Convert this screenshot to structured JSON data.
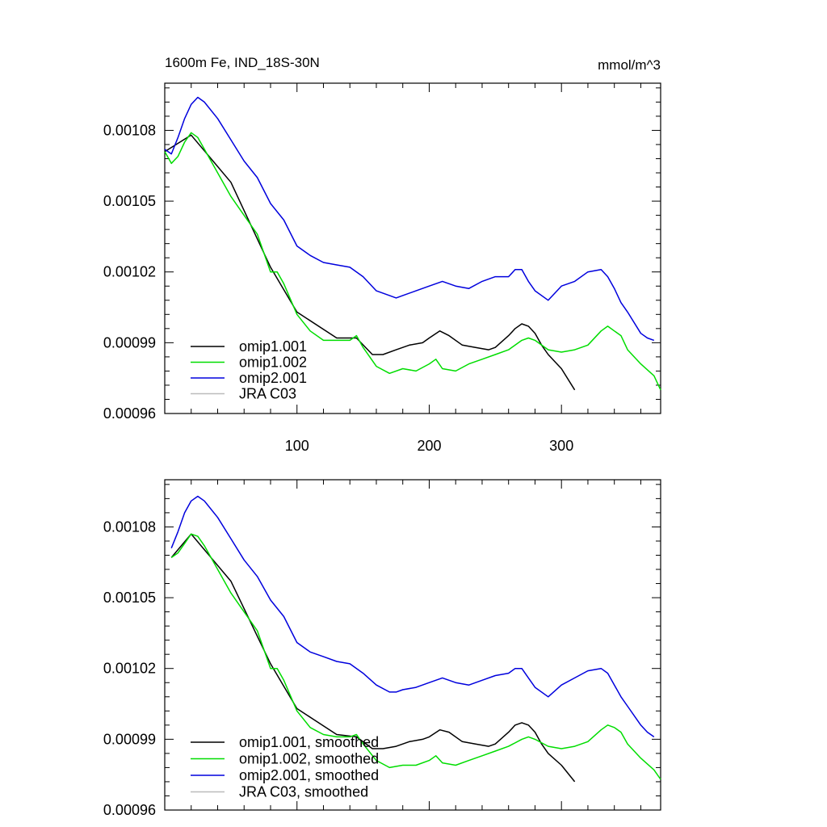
{
  "chart_data": [
    {
      "type": "line",
      "title": "1600m Fe, IND_18S-30N",
      "units": "mmol/m^3",
      "xlim": [
        0,
        375
      ],
      "ylim": [
        0.00096,
        0.0011
      ],
      "yticks": [
        "0.00096",
        "0.00099",
        "0.00102",
        "0.00105",
        "0.00108"
      ],
      "xticks": [
        "100",
        "200",
        "300"
      ],
      "legend": [
        "omip1.001",
        "omip1.002",
        "omip2.001",
        "JRA C03"
      ],
      "series": [
        {
          "name": "omip1.001",
          "color": "#000000",
          "x": [
            0,
            20,
            50,
            80,
            100,
            130,
            145,
            157,
            165,
            175,
            185,
            195,
            200,
            208,
            215,
            225,
            235,
            245,
            250,
            260,
            265,
            270,
            275,
            280,
            285,
            290,
            300,
            310
          ],
          "y": [
            0.001071,
            0.001078,
            0.001058,
            0.001022,
            0.001003,
            0.000992,
            0.000992,
            0.000985,
            0.000985,
            0.000987,
            0.000989,
            0.00099,
            0.000992,
            0.000995,
            0.000993,
            0.000989,
            0.000988,
            0.000987,
            0.000988,
            0.000993,
            0.000996,
            0.000998,
            0.000997,
            0.000994,
            0.000989,
            0.000985,
            0.000979,
            0.00097
          ]
        },
        {
          "name": "omip1.002",
          "color": "#00dd00",
          "x": [
            0,
            5,
            10,
            15,
            20,
            25,
            30,
            40,
            50,
            60,
            70,
            80,
            85,
            90,
            100,
            110,
            120,
            130,
            140,
            145,
            150,
            160,
            170,
            180,
            190,
            200,
            205,
            210,
            220,
            230,
            240,
            250,
            260,
            270,
            275,
            280,
            290,
            300,
            310,
            320,
            330,
            335,
            340,
            345,
            350,
            360,
            370,
            375
          ],
          "y": [
            0.001071,
            0.001066,
            0.001069,
            0.001075,
            0.001079,
            0.001077,
            0.001072,
            0.001062,
            0.001052,
            0.001044,
            0.001036,
            0.00102,
            0.00102,
            0.001015,
            0.001002,
            0.000995,
            0.000991,
            0.000991,
            0.000991,
            0.000993,
            0.000988,
            0.00098,
            0.000977,
            0.000979,
            0.000978,
            0.000981,
            0.000983,
            0.000979,
            0.000978,
            0.000981,
            0.000983,
            0.000985,
            0.000987,
            0.000991,
            0.000992,
            0.000991,
            0.000987,
            0.000986,
            0.000987,
            0.000989,
            0.000995,
            0.000997,
            0.000995,
            0.000993,
            0.000987,
            0.000981,
            0.000976,
            0.00097
          ]
        },
        {
          "name": "omip2.001",
          "color": "#0000dd",
          "x": [
            0,
            5,
            10,
            15,
            20,
            25,
            30,
            40,
            50,
            60,
            70,
            80,
            90,
            100,
            110,
            120,
            130,
            140,
            150,
            160,
            170,
            175,
            180,
            190,
            200,
            210,
            220,
            230,
            240,
            250,
            260,
            265,
            270,
            275,
            280,
            290,
            300,
            310,
            320,
            330,
            335,
            340,
            345,
            350,
            360,
            365,
            370
          ],
          "y": [
            0.001072,
            0.00107,
            0.001077,
            0.001085,
            0.001091,
            0.001094,
            0.001092,
            0.001085,
            0.001076,
            0.001067,
            0.00106,
            0.001049,
            0.001042,
            0.001031,
            0.001027,
            0.001024,
            0.001023,
            0.001022,
            0.001018,
            0.001012,
            0.00101,
            0.001009,
            0.00101,
            0.001012,
            0.001014,
            0.001016,
            0.001014,
            0.001013,
            0.001016,
            0.001018,
            0.001018,
            0.001021,
            0.001021,
            0.001016,
            0.001012,
            0.001008,
            0.001014,
            0.001016,
            0.00102,
            0.001021,
            0.001018,
            0.001013,
            0.001007,
            0.001003,
            0.000994,
            0.000992,
            0.000991
          ]
        }
      ]
    },
    {
      "type": "line",
      "title": "",
      "units": "",
      "xlim": [
        0,
        375
      ],
      "ylim": [
        0.00096,
        0.0011
      ],
      "yticks": [
        "0.00096",
        "0.00099",
        "0.00102",
        "0.00105",
        "0.00108"
      ],
      "xticks": [],
      "legend": [
        "omip1.001, smoothed",
        "omip1.002, smoothed",
        "omip2.001, smoothed",
        "JRA C03, smoothed"
      ],
      "series": [
        {
          "name": "omip1.001, smoothed",
          "color": "#000000",
          "x": [
            5,
            20,
            50,
            80,
            100,
            130,
            145,
            157,
            165,
            175,
            185,
            195,
            200,
            208,
            215,
            225,
            235,
            245,
            250,
            260,
            265,
            270,
            275,
            280,
            285,
            290,
            300,
            310
          ],
          "y": [
            0.001067,
            0.001077,
            0.001057,
            0.001022,
            0.001003,
            0.000992,
            0.000991,
            0.000986,
            0.000986,
            0.000987,
            0.000989,
            0.00099,
            0.000991,
            0.000994,
            0.000993,
            0.000989,
            0.000988,
            0.000987,
            0.000988,
            0.000993,
            0.000996,
            0.000997,
            0.000996,
            0.000993,
            0.000988,
            0.000984,
            0.000979,
            0.000972
          ]
        },
        {
          "name": "omip1.002, smoothed",
          "color": "#00dd00",
          "x": [
            5,
            10,
            15,
            20,
            25,
            30,
            40,
            50,
            60,
            70,
            80,
            85,
            90,
            100,
            110,
            120,
            130,
            140,
            145,
            150,
            160,
            170,
            180,
            190,
            200,
            205,
            210,
            220,
            230,
            240,
            250,
            260,
            270,
            275,
            280,
            290,
            300,
            310,
            320,
            330,
            335,
            340,
            345,
            350,
            360,
            370,
            375
          ],
          "y": [
            0.001067,
            0.001069,
            0.001073,
            0.001077,
            0.001076,
            0.001072,
            0.001062,
            0.001052,
            0.001044,
            0.001036,
            0.00102,
            0.00102,
            0.001015,
            0.001002,
            0.000995,
            0.000992,
            0.000991,
            0.000991,
            0.000992,
            0.000988,
            0.000981,
            0.000978,
            0.000979,
            0.000979,
            0.000981,
            0.000983,
            0.00098,
            0.000979,
            0.000981,
            0.000983,
            0.000985,
            0.000987,
            0.00099,
            0.000991,
            0.00099,
            0.000987,
            0.000986,
            0.000987,
            0.000989,
            0.000994,
            0.000996,
            0.000995,
            0.000993,
            0.000988,
            0.000982,
            0.000977,
            0.000973
          ]
        },
        {
          "name": "omip2.001, smoothed",
          "color": "#0000dd",
          "x": [
            5,
            10,
            15,
            20,
            25,
            30,
            40,
            50,
            60,
            70,
            80,
            90,
            100,
            110,
            120,
            130,
            140,
            150,
            160,
            170,
            175,
            180,
            190,
            200,
            210,
            220,
            230,
            240,
            250,
            260,
            265,
            270,
            275,
            280,
            290,
            300,
            310,
            320,
            330,
            335,
            340,
            345,
            350,
            360,
            365,
            370
          ],
          "y": [
            0.001071,
            0.001078,
            0.001086,
            0.001091,
            0.001093,
            0.001091,
            0.001084,
            0.001075,
            0.001066,
            0.001059,
            0.001049,
            0.001042,
            0.001031,
            0.001027,
            0.001025,
            0.001023,
            0.001022,
            0.001018,
            0.001013,
            0.00101,
            0.00101,
            0.001011,
            0.001012,
            0.001014,
            0.001016,
            0.001014,
            0.001013,
            0.001015,
            0.001017,
            0.001018,
            0.00102,
            0.00102,
            0.001016,
            0.001012,
            0.001008,
            0.001013,
            0.001016,
            0.001019,
            0.00102,
            0.001018,
            0.001013,
            0.001008,
            0.001004,
            0.000996,
            0.000993,
            0.000991
          ]
        }
      ]
    }
  ]
}
